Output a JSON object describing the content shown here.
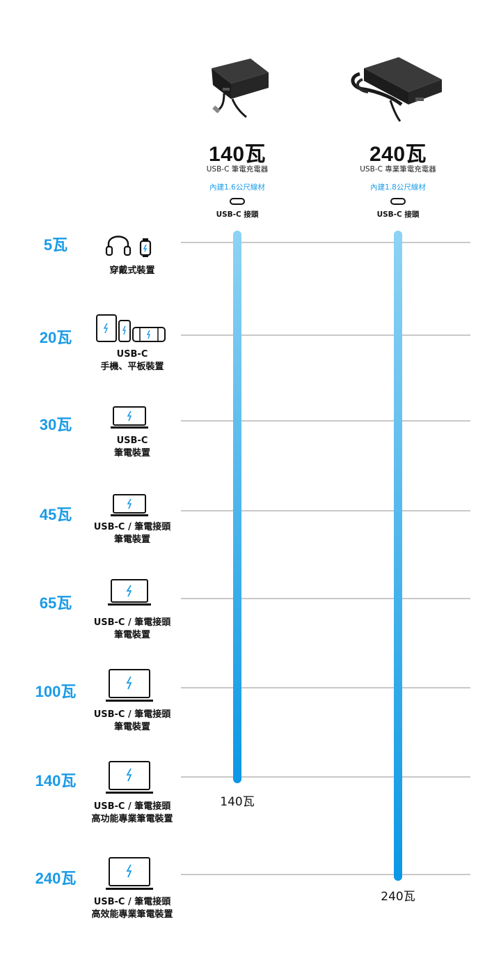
{
  "products": [
    {
      "watt": "140瓦",
      "name": "USB-C 筆電充電器",
      "cable": "內建1.6公尺線材",
      "port": "USB-C 接頭"
    },
    {
      "watt": "240瓦",
      "name": "USB-C 專業筆電充電器",
      "cable": "內建1.8公尺線材",
      "port": "USB-C 接頭"
    }
  ],
  "rows": [
    {
      "watt": "5瓦",
      "lines": [
        "穿戴式裝置"
      ],
      "icon": "wearable-icon"
    },
    {
      "watt": "20瓦",
      "lines": [
        "USB-C",
        "手機、平板裝置"
      ],
      "icon": "phone-tablet-icon"
    },
    {
      "watt": "30瓦",
      "lines": [
        "USB-C",
        "筆電裝置"
      ],
      "icon": "laptop-icon"
    },
    {
      "watt": "45瓦",
      "lines": [
        "USB-C / 筆電接頭",
        "筆電裝置"
      ],
      "icon": "laptop-icon"
    },
    {
      "watt": "65瓦",
      "lines": [
        "USB-C / 筆電接頭",
        "筆電裝置"
      ],
      "icon": "laptop-icon"
    },
    {
      "watt": "100瓦",
      "lines": [
        "USB-C / 筆電接頭",
        "筆電裝置"
      ],
      "icon": "laptop-icon"
    },
    {
      "watt": "140瓦",
      "lines": [
        "USB-C / 筆電接頭",
        "高功能專業筆電裝置"
      ],
      "icon": "laptop-icon"
    },
    {
      "watt": "240瓦",
      "lines": [
        "USB-C / 筆電接頭",
        "高效能專業筆電裝置"
      ],
      "icon": "laptop-icon"
    }
  ],
  "bars": [
    {
      "product": "140瓦",
      "max_watt": "140瓦"
    },
    {
      "product": "240瓦",
      "max_watt": "240瓦"
    }
  ],
  "colors": {
    "accent": "#1a9be6",
    "gridline": "#c8c8c8",
    "bar_top": "#8dd3f4",
    "bar_bottom": "#0b98e5"
  }
}
